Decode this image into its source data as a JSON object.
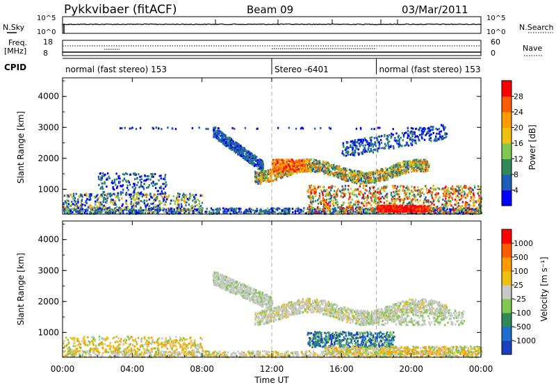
{
  "header": {
    "station": "Pykkvibaer (fitACF)",
    "beam": "Beam 09",
    "date": "03/Mar/2011"
  },
  "top_panel": {
    "nsky_label": "N.Sky",
    "nsky_ticks": [
      "10^5",
      "10^0"
    ],
    "nsearch_label": "N.Search",
    "nsearch_ticks": [
      "10^5",
      "10^0"
    ],
    "freq_label": "Freq.",
    "freq_unit": "[MHz]",
    "freq_ticks": [
      "18",
      "8"
    ],
    "nave_label": "Nave",
    "nave_ticks": [
      "60",
      "0"
    ],
    "cpid_label": "CPID",
    "cpid_segments": [
      {
        "label": "normal (fast stereo) 153",
        "start_h": 0,
        "end_h": 12
      },
      {
        "label": "Stereo -6401",
        "start_h": 12,
        "end_h": 18
      },
      {
        "label": "normal (fast stereo) 153",
        "start_h": 18,
        "end_h": 24
      }
    ]
  },
  "chart_data": [
    {
      "type": "heatmap",
      "ylabel": "Slant Range [km]",
      "ylim": [
        200,
        4600
      ],
      "yticks": [
        "1000",
        "2000",
        "3000",
        "4000"
      ],
      "xlim_hours": [
        0,
        24
      ],
      "colorbar": {
        "label": "Power [dB]",
        "ticks": [
          "4",
          "8",
          "12",
          "16",
          "20",
          "24",
          "28"
        ],
        "colors": [
          "#0000ff",
          "#1e5eb4",
          "#2e8b57",
          "#7ec850",
          "#f0c010",
          "#ff9a00",
          "#ff5a00",
          "#ff0000"
        ]
      }
    },
    {
      "type": "heatmap",
      "ylabel": "Slant Range [km]",
      "ylim": [
        200,
        4600
      ],
      "yticks": [
        "1000",
        "2000",
        "3000",
        "4000"
      ],
      "xlim_hours": [
        0,
        24
      ],
      "colorbar": {
        "label": "Velocity [m s⁻¹]",
        "ticks": [
          "1000",
          "500",
          "100",
          "25",
          "-25",
          "-100",
          "-500",
          "-1000"
        ],
        "colors": [
          "#1a3fbf",
          "#1e6fd0",
          "#2e8b57",
          "#7ec850",
          "#c8c8c8",
          "#f0c010",
          "#ff9a00",
          "#ff5a00",
          "#ff0000"
        ]
      }
    }
  ],
  "xaxis": {
    "ticks": [
      "00:00",
      "04:00",
      "08:00",
      "12:00",
      "16:00",
      "20:00",
      "00:00"
    ],
    "label": "Time UT"
  }
}
